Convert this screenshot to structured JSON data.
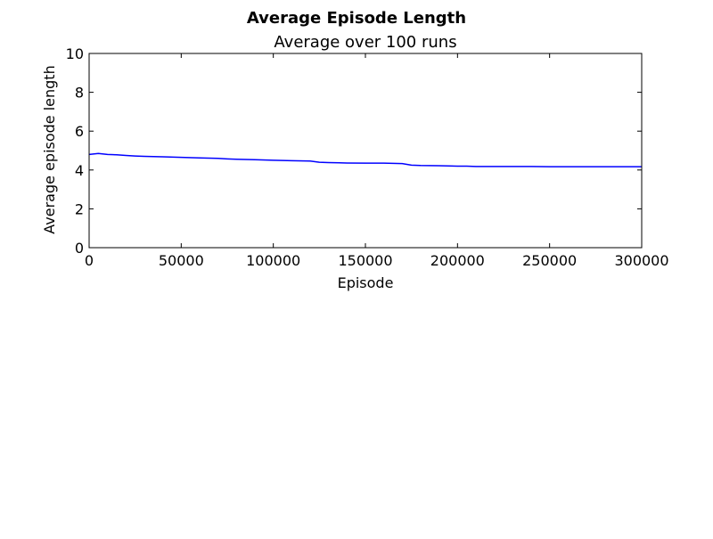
{
  "figure": {
    "suptitle": "Average Episode Length"
  },
  "chart_data": {
    "type": "line",
    "title": "Average over 100 runs",
    "xlabel": "Episode",
    "ylabel": "Average episode length",
    "xlim": [
      0,
      300000
    ],
    "ylim": [
      0,
      10
    ],
    "xticks": [
      0,
      50000,
      100000,
      150000,
      200000,
      250000,
      300000
    ],
    "yticks": [
      0,
      2,
      4,
      6,
      8,
      10
    ],
    "grid": false,
    "series": [
      {
        "color": "#0000ff",
        "x": [
          0,
          5000,
          10000,
          15000,
          20000,
          25000,
          30000,
          40000,
          50000,
          60000,
          70000,
          75000,
          80000,
          90000,
          100000,
          110000,
          120000,
          125000,
          130000,
          140000,
          150000,
          160000,
          170000,
          175000,
          180000,
          190000,
          200000,
          205000,
          210000,
          220000,
          230000,
          240000,
          250000,
          260000,
          270000,
          280000,
          290000,
          300000
        ],
        "y": [
          4.8,
          4.85,
          4.8,
          4.78,
          4.75,
          4.72,
          4.7,
          4.68,
          4.65,
          4.62,
          4.6,
          4.57,
          4.55,
          4.53,
          4.5,
          4.48,
          4.46,
          4.4,
          4.38,
          4.36,
          4.35,
          4.35,
          4.33,
          4.25,
          4.23,
          4.22,
          4.2,
          4.2,
          4.18,
          4.18,
          4.18,
          4.18,
          4.17,
          4.17,
          4.17,
          4.17,
          4.17,
          4.17
        ]
      }
    ]
  }
}
